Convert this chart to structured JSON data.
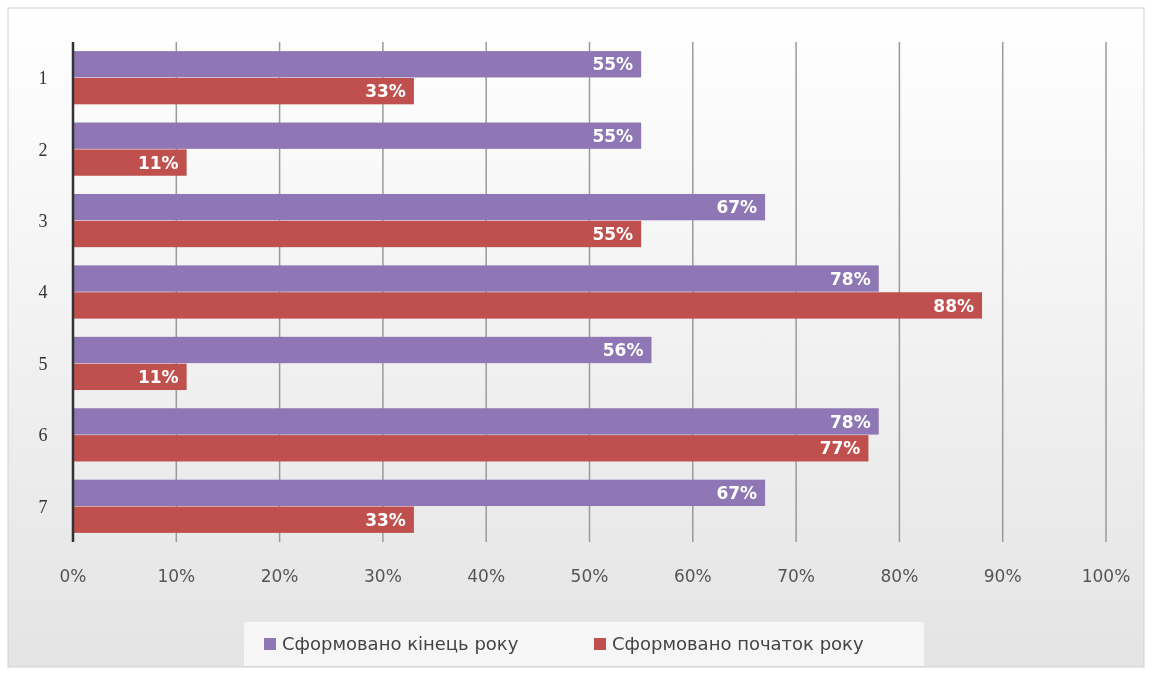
{
  "chart_data": {
    "type": "bar",
    "orientation": "horizontal",
    "categories": [
      "1",
      "2",
      "3",
      "4",
      "5",
      "6",
      "7"
    ],
    "series": [
      {
        "name": "Сформовано кінець року",
        "color": "#8e77b4",
        "values": [
          55,
          55,
          67,
          78,
          56,
          78,
          67
        ],
        "value_labels": [
          "55%",
          "55%",
          "67%",
          "78%",
          "56%",
          "78%",
          "67%"
        ]
      },
      {
        "name": "Сформовано початок року",
        "color": "#c0504d",
        "values": [
          33,
          11,
          55,
          88,
          11,
          77,
          33
        ],
        "value_labels": [
          "33%",
          "11%",
          "55%",
          "88%",
          "11%",
          "77%",
          "33%"
        ]
      }
    ],
    "xlim": [
      0,
      100
    ],
    "xticks": [
      {
        "value": 0,
        "label": "0%"
      },
      {
        "value": 10,
        "label": "10%"
      },
      {
        "value": 20,
        "label": "20%"
      },
      {
        "value": 30,
        "label": "30%"
      },
      {
        "value": 40,
        "label": "40%"
      },
      {
        "value": 50,
        "label": "50%"
      },
      {
        "value": 60,
        "label": "60%"
      },
      {
        "value": 70,
        "label": "70%"
      },
      {
        "value": 80,
        "label": "80%"
      },
      {
        "value": 90,
        "label": "90%"
      },
      {
        "value": 100,
        "label": "100%"
      }
    ],
    "grid": "x",
    "legend": "bottom"
  }
}
